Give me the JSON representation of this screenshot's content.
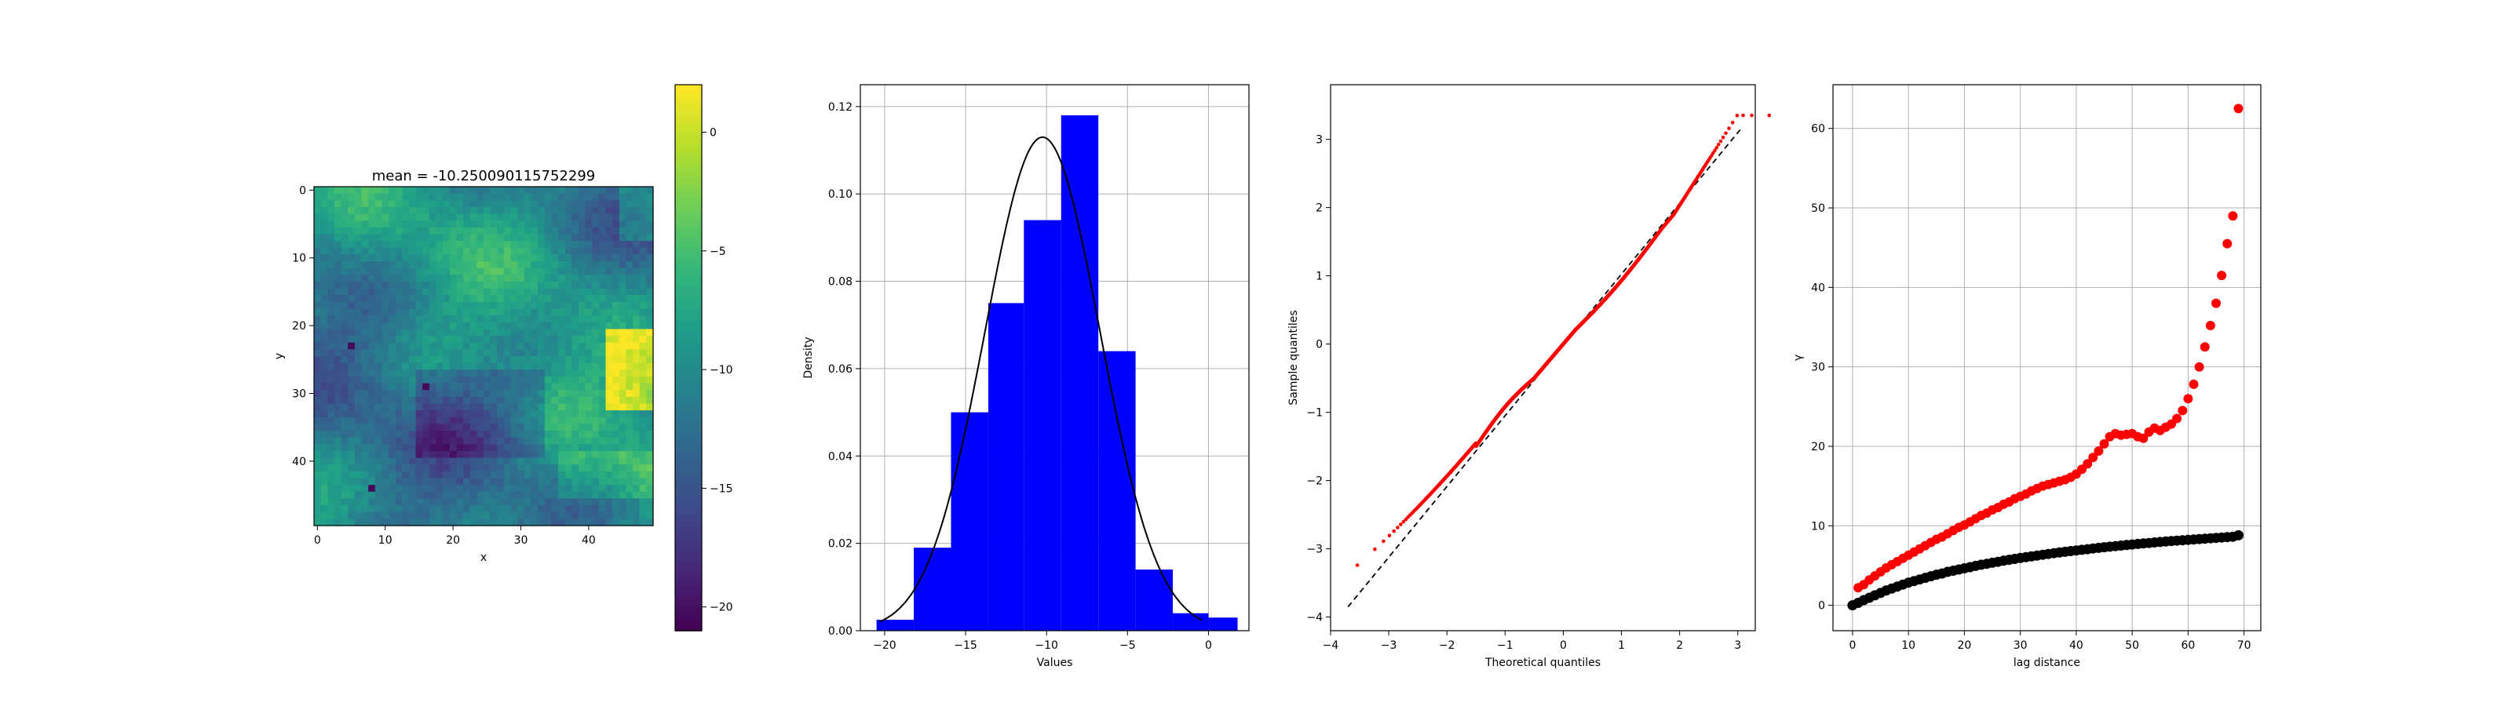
{
  "chart_data": [
    {
      "type": "heatmap",
      "title": "mean = -10.250090115752299",
      "xlabel": "x",
      "ylabel": "y",
      "grid_size": [
        50,
        50
      ],
      "x_ticks": [
        "0",
        "10",
        "20",
        "30",
        "40"
      ],
      "y_ticks": [
        "0",
        "10",
        "20",
        "30",
        "40"
      ],
      "colormap": "viridis",
      "colorbar_range": [
        -21,
        2
      ],
      "colorbar_ticks": [
        "0",
        "−5",
        "−10",
        "−15",
        "−20"
      ],
      "mean": -10.25
    },
    {
      "type": "bar",
      "subtype": "histogram_with_normal_pdf",
      "xlabel": "Values",
      "ylabel": "Density",
      "bin_edges": [
        -20.5,
        -18.2,
        -15.9,
        -13.6,
        -11.4,
        -9.1,
        -6.8,
        -4.5,
        -2.2,
        0.0,
        1.8
      ],
      "values": [
        0.0025,
        0.019,
        0.05,
        0.075,
        0.094,
        0.118,
        0.064,
        0.014,
        0.004,
        0.003
      ],
      "pdf_curve": {
        "mean": -10.25,
        "std": 3.55,
        "peak": 0.113
      },
      "xlim": [
        -21.5,
        2.5
      ],
      "ylim": [
        0,
        0.125
      ],
      "x_ticks": [
        "−20",
        "−15",
        "−10",
        "−5",
        "0"
      ],
      "y_ticks": [
        "0.00",
        "0.02",
        "0.04",
        "0.06",
        "0.08",
        "0.10",
        "0.12"
      ],
      "bar_color": "#0000ff",
      "grid": true
    },
    {
      "type": "scatter",
      "subtype": "qq_plot",
      "xlabel": "Theoretical quantiles",
      "ylabel": "Sample quantiles",
      "xlim": [
        -4,
        3.3
      ],
      "ylim": [
        -4.2,
        3.8
      ],
      "x_ticks": [
        "−4",
        "−3",
        "−2",
        "−1",
        "0",
        "1",
        "2",
        "3"
      ],
      "y_ticks": [
        "−4",
        "−3",
        "−2",
        "−1",
        "0",
        "1",
        "2",
        "3"
      ],
      "reference_line": {
        "from": [
          -3.7,
          -3.85
        ],
        "to": [
          3.05,
          3.15
        ]
      },
      "point_color": "#ff0000",
      "n_points": 2500,
      "grid": false
    },
    {
      "type": "scatter",
      "subtype": "variogram",
      "xlabel": "lag distance",
      "ylabel": "γ",
      "xlim": [
        -3.5,
        73
      ],
      "ylim": [
        -3.2,
        65.5
      ],
      "x_ticks": [
        "0",
        "10",
        "20",
        "30",
        "40",
        "50",
        "60",
        "70"
      ],
      "y_ticks": [
        "0",
        "10",
        "20",
        "30",
        "40",
        "50",
        "60"
      ],
      "series": [
        {
          "color": "#ff0000",
          "x": [
            1,
            2,
            3,
            4,
            5,
            6,
            7,
            8,
            9,
            10,
            11,
            12,
            13,
            14,
            15,
            16,
            17,
            18,
            19,
            20,
            21,
            22,
            23,
            24,
            25,
            26,
            27,
            28,
            29,
            30,
            31,
            32,
            33,
            34,
            35,
            36,
            37,
            38,
            39,
            40,
            41,
            42,
            43,
            44,
            45,
            46,
            47,
            48,
            49,
            50,
            51,
            52,
            53,
            54,
            55,
            56,
            57,
            58,
            59,
            60,
            61,
            62,
            63,
            64,
            65,
            66,
            67,
            68,
            69
          ],
          "values": [
            2.2,
            2.6,
            3.2,
            3.7,
            4.2,
            4.7,
            5.1,
            5.5,
            5.9,
            6.3,
            6.7,
            7.1,
            7.5,
            7.9,
            8.3,
            8.6,
            9.0,
            9.4,
            9.8,
            10.1,
            10.5,
            10.9,
            11.3,
            11.6,
            12.0,
            12.3,
            12.7,
            13.0,
            13.4,
            13.7,
            14.0,
            14.4,
            14.7,
            15.0,
            15.2,
            15.4,
            15.6,
            15.8,
            16.1,
            16.5,
            17.1,
            17.8,
            18.6,
            19.4,
            20.3,
            21.2,
            21.6,
            21.4,
            21.5,
            21.6,
            21.2,
            21.0,
            21.8,
            22.3,
            22.0,
            22.4,
            22.8,
            23.5,
            24.5,
            26.0,
            27.8,
            30.0,
            32.5,
            35.2,
            38.0,
            41.5,
            45.5,
            49.0,
            62.5
          ]
        },
        {
          "color": "#000000",
          "x": [
            0,
            1,
            2,
            3,
            4,
            5,
            6,
            7,
            8,
            9,
            10,
            11,
            12,
            13,
            14,
            15,
            16,
            17,
            18,
            19,
            20,
            21,
            22,
            23,
            24,
            25,
            26,
            27,
            28,
            29,
            30,
            31,
            32,
            33,
            34,
            35,
            36,
            37,
            38,
            39,
            40,
            41,
            42,
            43,
            44,
            45,
            46,
            47,
            48,
            49,
            50,
            51,
            52,
            53,
            54,
            55,
            56,
            57,
            58,
            59,
            60,
            61,
            62,
            63,
            64,
            65,
            66,
            67,
            68,
            69
          ],
          "values": [
            0.0,
            0.3,
            0.65,
            0.95,
            1.25,
            1.55,
            1.85,
            2.1,
            2.35,
            2.6,
            2.85,
            3.05,
            3.25,
            3.45,
            3.65,
            3.85,
            4.0,
            4.2,
            4.35,
            4.5,
            4.65,
            4.8,
            4.95,
            5.1,
            5.22,
            5.35,
            5.47,
            5.6,
            5.72,
            5.83,
            5.95,
            6.05,
            6.15,
            6.25,
            6.35,
            6.45,
            6.55,
            6.64,
            6.73,
            6.82,
            6.9,
            6.98,
            7.06,
            7.14,
            7.22,
            7.3,
            7.37,
            7.44,
            7.51,
            7.58,
            7.65,
            7.72,
            7.78,
            7.84,
            7.9,
            7.96,
            8.02,
            8.08,
            8.13,
            8.18,
            8.23,
            8.28,
            8.33,
            8.38,
            8.43,
            8.48,
            8.53,
            8.58,
            8.63,
            8.8
          ]
        }
      ],
      "grid": true
    }
  ]
}
